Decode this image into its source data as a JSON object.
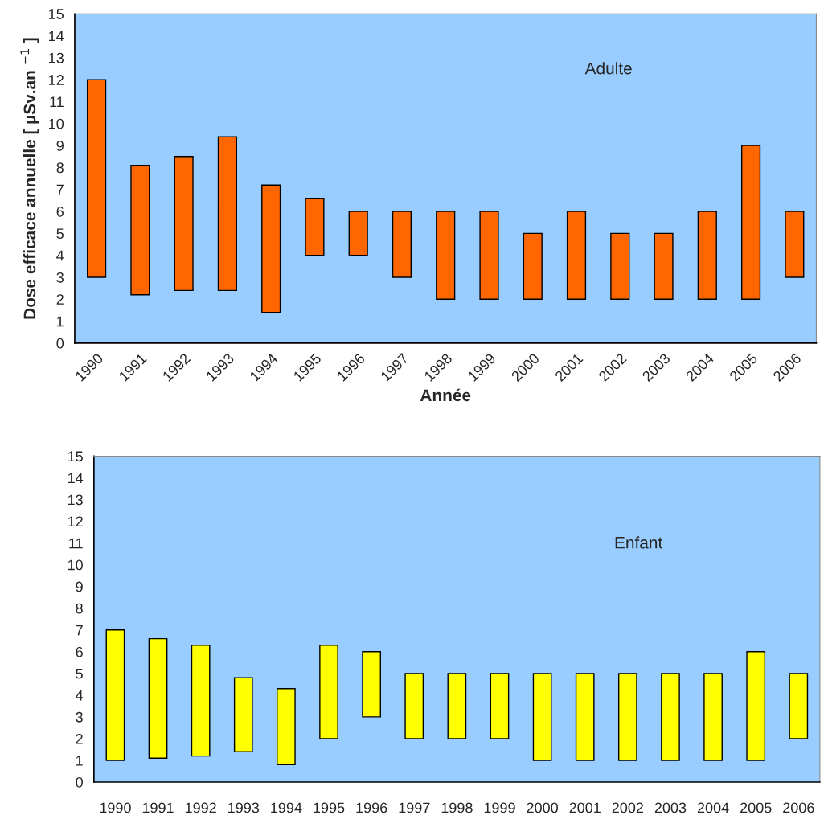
{
  "chart_data": [
    {
      "type": "bar",
      "title": "Adulte",
      "xlabel": "Année",
      "ylabel": "Dose efficace annuelle [ µSv.an $^{−1}$ ]",
      "categories": [
        "1990",
        "1991",
        "1992",
        "1993",
        "1994",
        "1995",
        "1996",
        "1997",
        "1998",
        "1999",
        "2000",
        "2001",
        "2002",
        "2003",
        "2004",
        "2005",
        "2006"
      ],
      "base": [
        3,
        2.2,
        2.4,
        2.4,
        1.4,
        4,
        4,
        3,
        2,
        2,
        2,
        2,
        2,
        2,
        2,
        2,
        3
      ],
      "values": [
        9,
        5.9,
        6.1,
        7.0,
        5.8,
        2.6,
        2,
        3,
        4,
        4,
        3,
        4,
        3,
        3,
        4,
        7,
        3
      ],
      "color": "#ff6600",
      "ylim": [
        0,
        15
      ],
      "yticks": [
        0,
        1,
        2,
        3,
        4,
        5,
        6,
        7,
        8,
        9,
        10,
        11,
        12,
        13,
        14,
        15
      ]
    },
    {
      "type": "bar",
      "title": "Enfant",
      "categories": [
        "1990",
        "1991",
        "1992",
        "1993",
        "1994",
        "1995",
        "1996",
        "1997",
        "1998",
        "1999",
        "2000",
        "2001",
        "2002",
        "2003",
        "2004",
        "2005",
        "2006"
      ],
      "base": [
        1,
        1.1,
        1.2,
        1.4,
        0.8,
        2,
        3,
        2,
        2,
        2,
        1,
        1,
        1,
        1,
        1,
        1,
        2
      ],
      "values": [
        6,
        5.5,
        5.1,
        3.4,
        3.5,
        4.3,
        3,
        3,
        3,
        3,
        4,
        4,
        4,
        4,
        4,
        5,
        3
      ],
      "color": "#ffff00",
      "ylim": [
        0,
        15
      ],
      "yticks": [
        0,
        1,
        2,
        3,
        4,
        5,
        6,
        7,
        8,
        9,
        10,
        11,
        12,
        13,
        14,
        15
      ]
    }
  ]
}
